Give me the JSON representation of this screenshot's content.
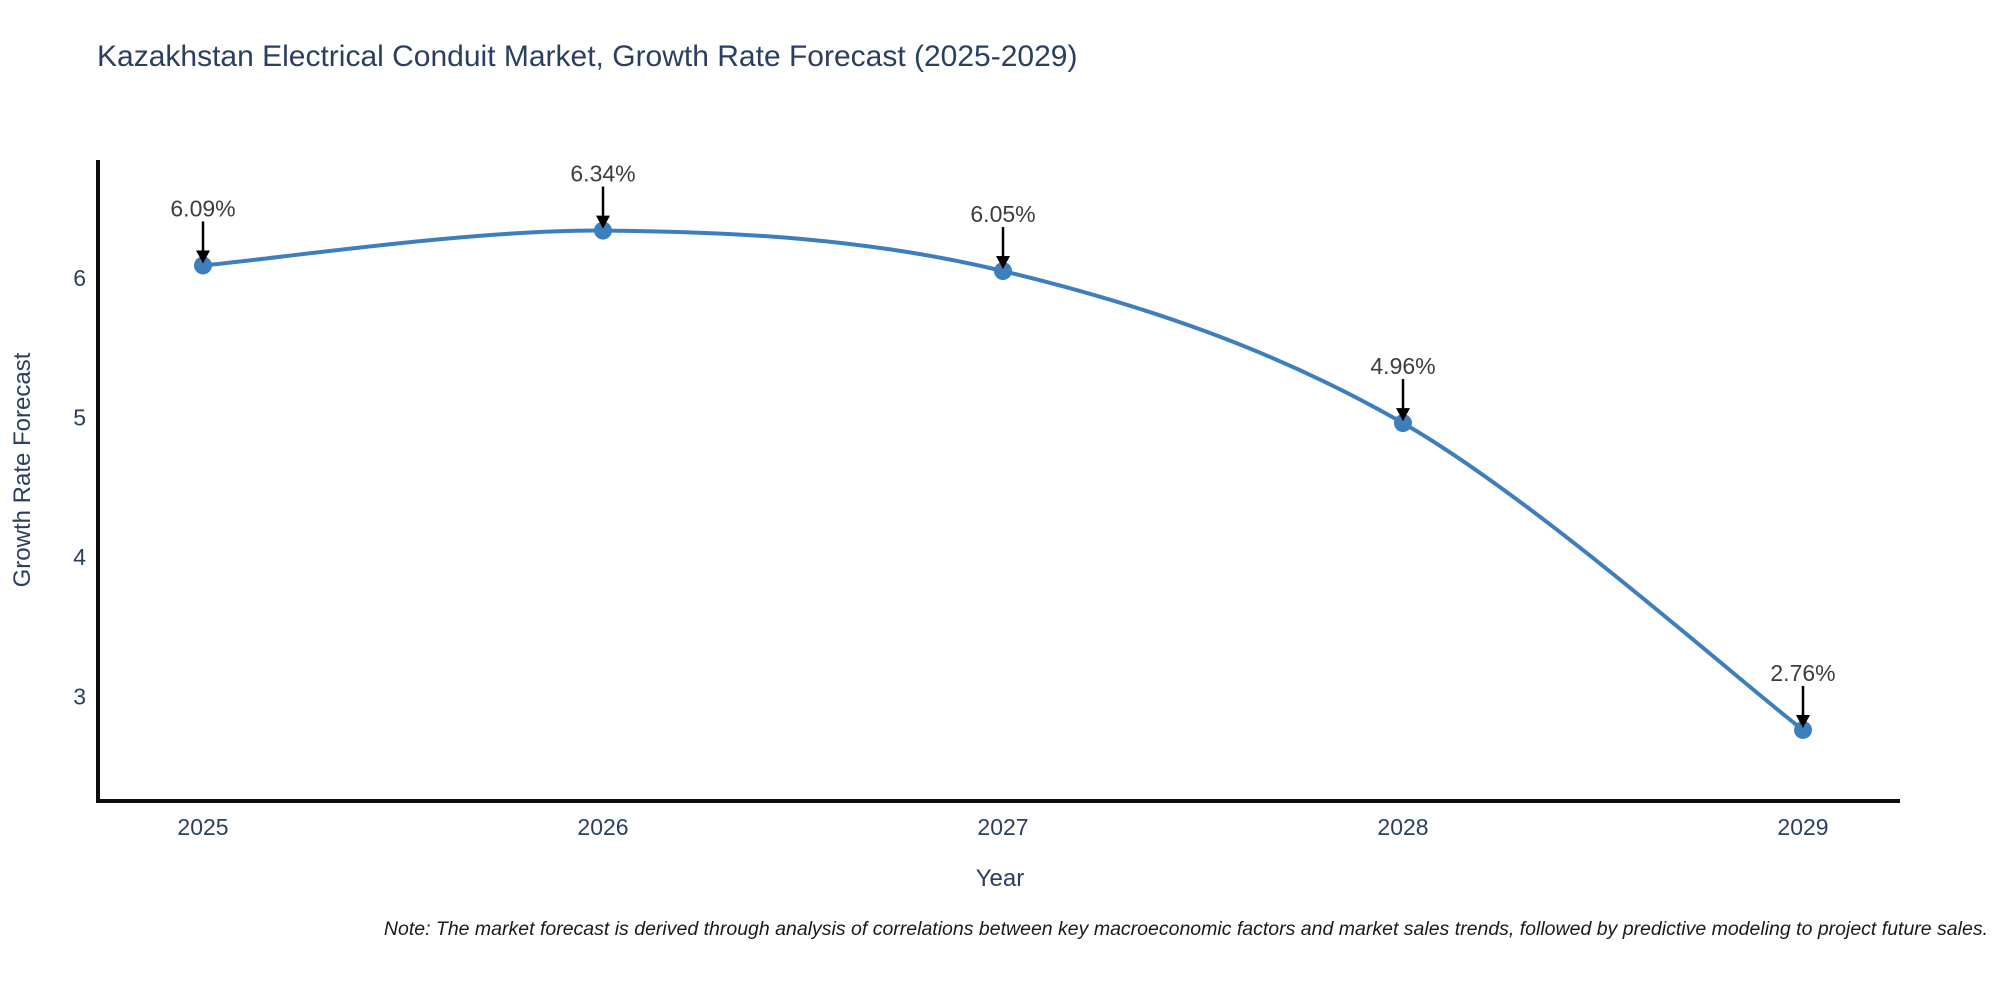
{
  "title": "Kazakhstan Electrical Conduit Market, Growth Rate Forecast (2025-2029)",
  "note": "Note: The market forecast is derived through analysis of correlations between key macroeconomic factors and market sales trends, followed by predictive modeling to project future sales.",
  "chart_data": {
    "type": "line",
    "title": "Kazakhstan Electrical Conduit Market, Growth Rate Forecast (2025-2029)",
    "xlabel": "Year",
    "ylabel": "Growth Rate Forecast",
    "x": [
      2025,
      2026,
      2027,
      2028,
      2029
    ],
    "values": [
      6.09,
      6.34,
      6.05,
      4.96,
      2.76
    ],
    "point_labels": [
      "6.09%",
      "6.34%",
      "6.05%",
      "4.96%",
      "2.76%"
    ],
    "x_tick_labels": [
      "2025",
      "2026",
      "2027",
      "2028",
      "2029"
    ],
    "y_ticks": [
      3,
      4,
      5,
      6
    ],
    "xlim": [
      2024.74,
      2029.25
    ],
    "ylim": [
      2.25,
      6.85
    ],
    "grid": false,
    "legend": "none",
    "line_shape": "spline",
    "colors": {
      "line": "#3d7ebd",
      "marker": "#3d7ebd",
      "axis": "#0d0d0d",
      "axis_text": "#2a3f5f",
      "annotation_text": "#3d3d3d",
      "arrow": "#000000"
    }
  }
}
